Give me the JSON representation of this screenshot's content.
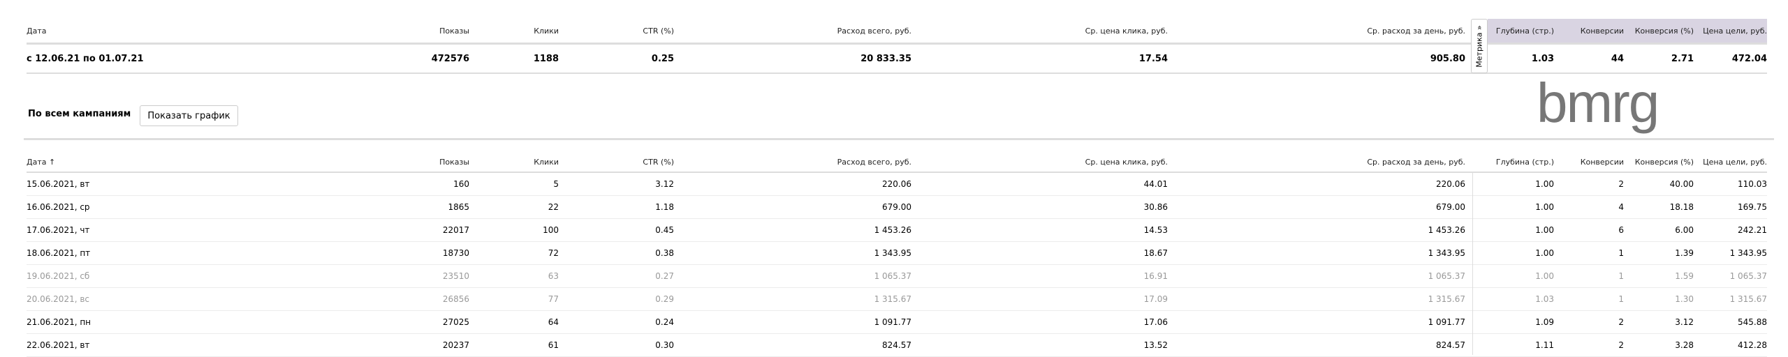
{
  "summary": {
    "headers": [
      "Дата",
      "Показы",
      "Клики",
      "CTR (%)",
      "Расход всего, руб.",
      "Ср. цена клика, руб.",
      "Ср. расход за день, руб.",
      "",
      "Глубина (стр.)",
      "Конверсии",
      "Конверсия (%)",
      "Цена цели, руб."
    ],
    "total": [
      "с 12.06.21 по 01.07.21",
      "472576",
      "1188",
      "0.25",
      "20 833.35",
      "17.54",
      "905.80",
      "",
      "1.03",
      "44",
      "2.71",
      "472.04"
    ],
    "metrika_tab": "Метрика »"
  },
  "section": {
    "title": "По всем кампаниям",
    "show_chart_button": "Показать график"
  },
  "table": {
    "headers": [
      "Дата ↑",
      "Показы",
      "Клики",
      "CTR (%)",
      "Расход всего, руб.",
      "Ср. цена клика, руб.",
      "Ср. расход за день, руб.",
      "",
      "Глубина (стр.)",
      "Конверсии",
      "Конверсия (%)",
      "Цена цели, руб."
    ],
    "rows": [
      {
        "weekend": false,
        "cells": [
          "15.06.2021, вт",
          "160",
          "5",
          "3.12",
          "220.06",
          "44.01",
          "220.06",
          "",
          "1.00",
          "2",
          "40.00",
          "110.03"
        ]
      },
      {
        "weekend": false,
        "cells": [
          "16.06.2021, ср",
          "1865",
          "22",
          "1.18",
          "679.00",
          "30.86",
          "679.00",
          "",
          "1.00",
          "4",
          "18.18",
          "169.75"
        ]
      },
      {
        "weekend": false,
        "cells": [
          "17.06.2021, чт",
          "22017",
          "100",
          "0.45",
          "1 453.26",
          "14.53",
          "1 453.26",
          "",
          "1.00",
          "6",
          "6.00",
          "242.21"
        ]
      },
      {
        "weekend": false,
        "cells": [
          "18.06.2021, пт",
          "18730",
          "72",
          "0.38",
          "1 343.95",
          "18.67",
          "1 343.95",
          "",
          "1.00",
          "1",
          "1.39",
          "1 343.95"
        ]
      },
      {
        "weekend": true,
        "cells": [
          "19.06.2021, сб",
          "23510",
          "63",
          "0.27",
          "1 065.37",
          "16.91",
          "1 065.37",
          "",
          "1.00",
          "1",
          "1.59",
          "1 065.37"
        ]
      },
      {
        "weekend": true,
        "cells": [
          "20.06.2021, вс",
          "26856",
          "77",
          "0.29",
          "1 315.67",
          "17.09",
          "1 315.67",
          "",
          "1.03",
          "1",
          "1.30",
          "1 315.67"
        ]
      },
      {
        "weekend": false,
        "cells": [
          "21.06.2021, пн",
          "27025",
          "64",
          "0.24",
          "1 091.77",
          "17.06",
          "1 091.77",
          "",
          "1.09",
          "2",
          "3.12",
          "545.88"
        ]
      },
      {
        "weekend": false,
        "cells": [
          "22.06.2021, вт",
          "20237",
          "61",
          "0.30",
          "824.57",
          "13.52",
          "824.57",
          "",
          "1.11",
          "2",
          "3.28",
          "412.28"
        ]
      }
    ]
  },
  "watermark": "bmrg",
  "colors": {
    "metrika_header_bg": "#d9d4e2",
    "weekend_text": "#999999"
  }
}
